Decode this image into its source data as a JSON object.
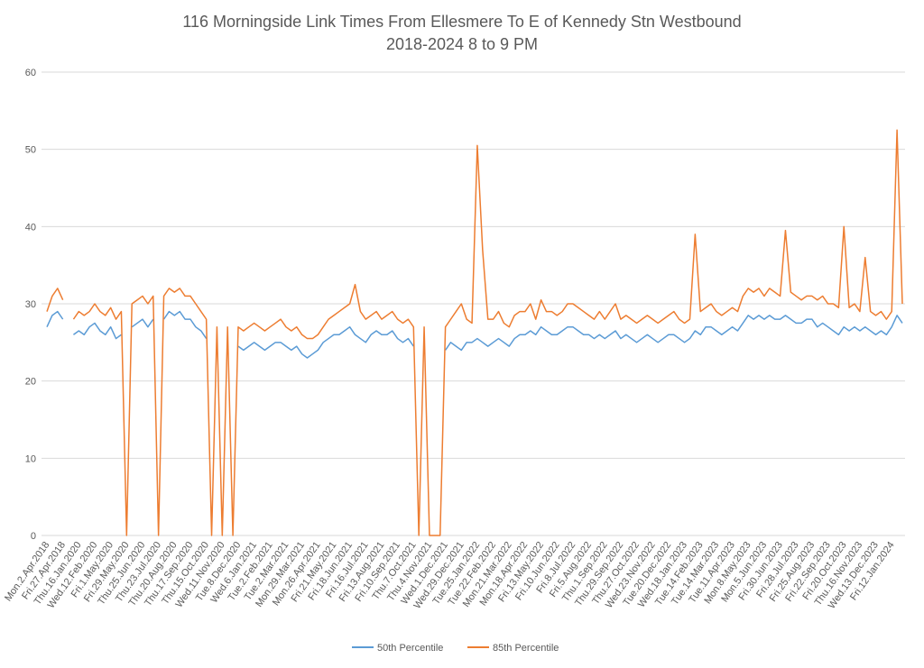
{
  "chart_data": {
    "type": "line",
    "title": "116 Morningside Link Times From Ellesmere To E of Kennedy Stn Westbound",
    "subtitle": "2018-2024 8 to 9 PM",
    "categories": [
      "Mon.2.Apr.2018",
      null,
      null,
      "Fri.27.Apr.2018",
      null,
      null,
      "Thu.16.Jan.2020",
      null,
      null,
      "Wed.12.Feb.2020",
      null,
      null,
      "Fri.1.May.2020",
      null,
      null,
      "Fri.29.May.2020",
      null,
      null,
      "Thu.25.Jun.2020",
      null,
      null,
      "Thu.23.Jul.2020",
      null,
      null,
      "Thu.20.Aug.2020",
      null,
      null,
      "Thu.17.Sep.2020",
      null,
      null,
      "Thu.15.Oct.2020",
      null,
      null,
      "Wed.11.Nov.2020",
      null,
      null,
      "Tue.8.Dec.2020",
      null,
      null,
      "Wed.6.Jan.2021",
      null,
      null,
      "Tue.2.Feb.2021",
      null,
      null,
      "Tue.2.Mar.2021",
      null,
      null,
      "Mon.29.Mar.2021",
      null,
      null,
      "Mon.26.Apr.2021",
      null,
      null,
      "Fri.21.May.2021",
      null,
      null,
      "Fri.18.Jun.2021",
      null,
      null,
      "Fri.16.Jul.2021",
      null,
      null,
      "Fri.13.Aug.2021",
      null,
      null,
      "Fri.10.Sep.2021",
      null,
      null,
      "Thu.7.Oct.2021",
      null,
      null,
      "Thu.4.Nov.2021",
      null,
      null,
      "Wed.1.Dec.2021",
      null,
      null,
      "Wed.29.Dec.2021",
      null,
      null,
      "Tue.25.Jan.2022",
      null,
      null,
      "Tue.22.Feb.2022",
      null,
      null,
      "Mon.21.Mar.2022",
      null,
      null,
      "Mon.18.Apr.2022",
      null,
      null,
      "Fri.13.May.2022",
      null,
      null,
      "Fri.10.Jun.2022",
      null,
      null,
      "Fri.8.Jul.2022",
      null,
      null,
      "Fri.5.Aug.2022",
      null,
      null,
      "Thu.1.Sep.2022",
      null,
      null,
      "Thu.29.Sep.2022",
      null,
      null,
      "Thu.27.Oct.2022",
      null,
      null,
      "Wed.23.Nov.2022",
      null,
      null,
      "Tue.20.Dec.2022",
      null,
      null,
      "Wed.18.Jan.2023",
      null,
      null,
      "Tue.14.Feb.2023",
      null,
      null,
      "Tue.14.Mar.2023",
      null,
      null,
      "Tue.11.Apr.2023",
      null,
      null,
      "Mon.8.May.2023",
      null,
      null,
      "Mon.5.Jun.2023",
      null,
      null,
      "Fri.30.Jun.2023",
      null,
      null,
      "Fri.28.Jul.2023",
      null,
      null,
      "Fri.25.Aug.2023",
      null,
      null,
      "Fri.22.Sep.2023",
      null,
      null,
      "Fri.20.Oct.2023",
      null,
      null,
      "Thu.16.Nov.2023",
      null,
      null,
      "Wed.13.Dec.2023",
      null,
      null,
      "Fri.12.Jan.2024",
      null,
      null
    ],
    "series": [
      {
        "name": "50th Percentile",
        "color": "#5b9bd5",
        "values": [
          27,
          28.5,
          29,
          28,
          null,
          26,
          26.5,
          26,
          27,
          27.5,
          26.5,
          26,
          27,
          25.5,
          26,
          null,
          27,
          27.5,
          28,
          27,
          28,
          null,
          28,
          29,
          28.5,
          29,
          28,
          28,
          27,
          26.5,
          25.5,
          null,
          25,
          null,
          24.5,
          null,
          24.5,
          24,
          24.5,
          25,
          24.5,
          24,
          24.5,
          25,
          25,
          24.5,
          24,
          24.5,
          23.5,
          23,
          23.5,
          24,
          25,
          25.5,
          26,
          26,
          26.5,
          27,
          26,
          25.5,
          25,
          26,
          26.5,
          26,
          26,
          26.5,
          25.5,
          25,
          25.5,
          24.5,
          null,
          24.5,
          null,
          null,
          null,
          24,
          25,
          24.5,
          24,
          25,
          25,
          25.5,
          25,
          24.5,
          25,
          25.5,
          25,
          24.5,
          25.5,
          26,
          26,
          26.5,
          26,
          27,
          26.5,
          26,
          26,
          26.5,
          27,
          27,
          26.5,
          26,
          26,
          25.5,
          26,
          25.5,
          26,
          26.5,
          25.5,
          26,
          25.5,
          25,
          25.5,
          26,
          25.5,
          25,
          25.5,
          26,
          26,
          25.5,
          25,
          25.5,
          26.5,
          26,
          27,
          27,
          26.5,
          26,
          26.5,
          27,
          26.5,
          27.5,
          28.5,
          28,
          28.5,
          28,
          28.5,
          28,
          28,
          28.5,
          28,
          27.5,
          27.5,
          28,
          28,
          27,
          27.5,
          27,
          26.5,
          26,
          27,
          26.5,
          27,
          26.5,
          27,
          26.5,
          26,
          26.5,
          26,
          27,
          28.5,
          27.5
        ]
      },
      {
        "name": "85th Percentile",
        "color": "#ed7d31",
        "values": [
          29,
          31,
          32,
          30.5,
          null,
          28,
          29,
          28.5,
          29,
          30,
          29,
          28.5,
          29.5,
          28,
          29,
          0,
          30,
          30.5,
          31,
          30,
          31,
          0,
          31,
          32,
          31.5,
          32,
          31,
          31,
          30,
          29,
          28,
          0,
          27,
          0,
          27,
          0,
          27,
          26.5,
          27,
          27.5,
          27,
          26.5,
          27,
          27.5,
          28,
          27,
          26.5,
          27,
          26,
          25.5,
          25.5,
          26,
          27,
          28,
          28.5,
          29,
          29.5,
          30,
          32.5,
          29,
          28,
          28.5,
          29,
          28,
          28.5,
          29,
          28,
          27.5,
          28,
          27,
          0,
          27,
          0,
          0,
          0,
          27,
          28,
          29,
          30,
          28,
          27.5,
          50.5,
          37,
          28,
          28,
          29,
          27.5,
          27,
          28.5,
          29,
          29,
          30,
          28,
          30.5,
          29,
          29,
          28.5,
          29,
          30,
          30,
          29.5,
          29,
          28.5,
          28,
          29,
          28,
          29,
          30,
          28,
          28.5,
          28,
          27.5,
          28,
          28.5,
          28,
          27.5,
          28,
          28.5,
          29,
          28,
          27.5,
          28,
          39,
          29,
          29.5,
          30,
          29,
          28.5,
          29,
          29.5,
          29,
          31,
          32,
          31.5,
          32,
          31,
          32,
          31.5,
          31,
          39.5,
          31.5,
          31,
          30.5,
          31,
          31,
          30.5,
          31,
          30,
          30,
          29.5,
          40,
          29.5,
          30,
          29,
          36,
          29,
          28.5,
          29,
          28,
          29,
          52.5,
          30
        ]
      }
    ],
    "ylim": [
      0,
      60
    ],
    "yticks": [
      0,
      10,
      20,
      30,
      40,
      50,
      60
    ],
    "grid": true,
    "legend": "bottom"
  }
}
